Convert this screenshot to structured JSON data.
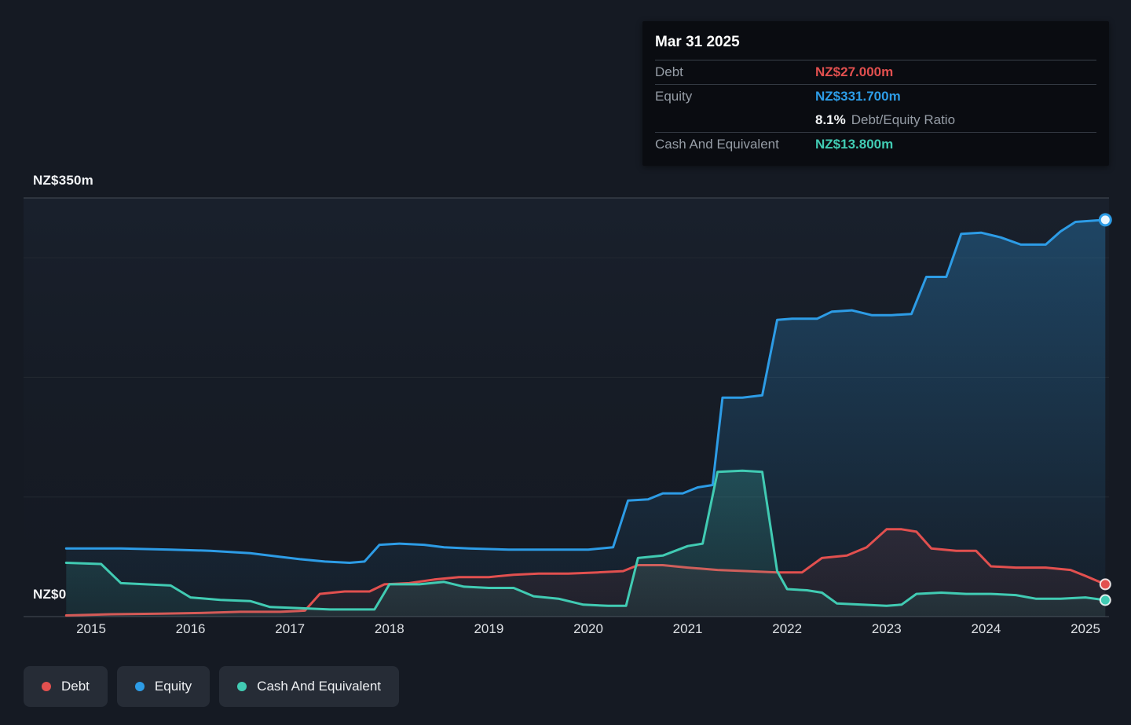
{
  "tooltip": {
    "date": "Mar 31 2025",
    "debt": {
      "label": "Debt",
      "value": "NZ$27.000m",
      "color": "#e2504f"
    },
    "equity": {
      "label": "Equity",
      "value": "NZ$331.700m",
      "color": "#2d9ce6"
    },
    "ratio": {
      "value": "8.1%",
      "label": "Debt/Equity Ratio"
    },
    "cash": {
      "label": "Cash And Equivalent",
      "value": "NZ$13.800m",
      "color": "#41cbb3"
    }
  },
  "legend": {
    "items": [
      {
        "label": "Debt",
        "color": "#e2504f"
      },
      {
        "label": "Equity",
        "color": "#2d9ce6"
      },
      {
        "label": "Cash And Equivalent",
        "color": "#41cbb3"
      }
    ]
  },
  "chart_data": {
    "type": "area",
    "subtype": "step-area time series",
    "x_unit": "year",
    "x_range": [
      2014.75,
      2025.25
    ],
    "y_range": [
      0,
      350
    ],
    "y_unit": "NZ$ millions",
    "grid": true,
    "legend_position": "bottom-left",
    "y_axis": {
      "top_label": "NZ$350m",
      "bottom_label": "NZ$0",
      "gridline_values": [
        350,
        300,
        200,
        100,
        0
      ]
    },
    "x_tick_labels": [
      "2015",
      "2016",
      "2017",
      "2018",
      "2019",
      "2020",
      "2021",
      "2022",
      "2023",
      "2024",
      "2025"
    ],
    "series": [
      {
        "name": "Equity",
        "color": "#2d9ce6",
        "points": [
          [
            2014.75,
            57
          ],
          [
            2015.3,
            57
          ],
          [
            2015.8,
            56
          ],
          [
            2016.2,
            55
          ],
          [
            2016.6,
            53
          ],
          [
            2016.9,
            50
          ],
          [
            2017.1,
            48
          ],
          [
            2017.35,
            46
          ],
          [
            2017.6,
            45
          ],
          [
            2017.75,
            46
          ],
          [
            2017.9,
            60
          ],
          [
            2018.1,
            61
          ],
          [
            2018.35,
            60
          ],
          [
            2018.55,
            58
          ],
          [
            2018.8,
            57
          ],
          [
            2019.2,
            56
          ],
          [
            2019.6,
            56
          ],
          [
            2020.0,
            56
          ],
          [
            2020.25,
            58
          ],
          [
            2020.4,
            97
          ],
          [
            2020.6,
            98
          ],
          [
            2020.75,
            103
          ],
          [
            2020.95,
            103
          ],
          [
            2021.1,
            108
          ],
          [
            2021.25,
            110
          ],
          [
            2021.35,
            183
          ],
          [
            2021.55,
            183
          ],
          [
            2021.75,
            185
          ],
          [
            2021.9,
            248
          ],
          [
            2022.05,
            249
          ],
          [
            2022.3,
            249
          ],
          [
            2022.45,
            255
          ],
          [
            2022.65,
            256
          ],
          [
            2022.85,
            252
          ],
          [
            2023.05,
            252
          ],
          [
            2023.25,
            253
          ],
          [
            2023.4,
            284
          ],
          [
            2023.6,
            284
          ],
          [
            2023.75,
            320
          ],
          [
            2023.95,
            321
          ],
          [
            2024.15,
            317
          ],
          [
            2024.35,
            311
          ],
          [
            2024.6,
            311
          ],
          [
            2024.75,
            322
          ],
          [
            2024.9,
            330
          ],
          [
            2025.2,
            331.7
          ]
        ]
      },
      {
        "name": "Debt",
        "color": "#e2504f",
        "points": [
          [
            2014.75,
            1
          ],
          [
            2015.2,
            2
          ],
          [
            2015.7,
            2.5
          ],
          [
            2016.1,
            3
          ],
          [
            2016.5,
            4
          ],
          [
            2016.9,
            4
          ],
          [
            2017.15,
            5
          ],
          [
            2017.3,
            19
          ],
          [
            2017.55,
            21
          ],
          [
            2017.8,
            21
          ],
          [
            2017.95,
            27
          ],
          [
            2018.2,
            28
          ],
          [
            2018.45,
            31
          ],
          [
            2018.7,
            33
          ],
          [
            2019.0,
            33
          ],
          [
            2019.25,
            35
          ],
          [
            2019.5,
            36
          ],
          [
            2019.8,
            36
          ],
          [
            2020.1,
            37
          ],
          [
            2020.35,
            38
          ],
          [
            2020.5,
            43
          ],
          [
            2020.75,
            43
          ],
          [
            2021.0,
            41
          ],
          [
            2021.3,
            39
          ],
          [
            2021.6,
            38
          ],
          [
            2021.9,
            37
          ],
          [
            2022.15,
            37
          ],
          [
            2022.35,
            49
          ],
          [
            2022.6,
            51
          ],
          [
            2022.8,
            58
          ],
          [
            2023.0,
            73
          ],
          [
            2023.15,
            73
          ],
          [
            2023.3,
            71
          ],
          [
            2023.45,
            57
          ],
          [
            2023.7,
            55
          ],
          [
            2023.9,
            55
          ],
          [
            2024.05,
            42
          ],
          [
            2024.3,
            41
          ],
          [
            2024.6,
            41
          ],
          [
            2024.85,
            39
          ],
          [
            2025.0,
            34
          ],
          [
            2025.2,
            27
          ]
        ]
      },
      {
        "name": "Cash And Equivalent",
        "color": "#41cbb3",
        "points": [
          [
            2014.75,
            45
          ],
          [
            2015.1,
            44
          ],
          [
            2015.3,
            28
          ],
          [
            2015.55,
            27
          ],
          [
            2015.8,
            26
          ],
          [
            2016.0,
            16
          ],
          [
            2016.3,
            14
          ],
          [
            2016.6,
            13
          ],
          [
            2016.8,
            8
          ],
          [
            2017.1,
            7
          ],
          [
            2017.4,
            6
          ],
          [
            2017.7,
            6
          ],
          [
            2017.85,
            6
          ],
          [
            2018.0,
            27
          ],
          [
            2018.3,
            27
          ],
          [
            2018.55,
            29
          ],
          [
            2018.75,
            25
          ],
          [
            2019.0,
            24
          ],
          [
            2019.25,
            24
          ],
          [
            2019.45,
            17
          ],
          [
            2019.7,
            15
          ],
          [
            2019.95,
            10
          ],
          [
            2020.2,
            9
          ],
          [
            2020.38,
            9
          ],
          [
            2020.5,
            49
          ],
          [
            2020.75,
            51
          ],
          [
            2021.0,
            59
          ],
          [
            2021.15,
            61
          ],
          [
            2021.3,
            121
          ],
          [
            2021.55,
            122
          ],
          [
            2021.75,
            121
          ],
          [
            2021.9,
            38
          ],
          [
            2022.0,
            23
          ],
          [
            2022.2,
            22
          ],
          [
            2022.35,
            20
          ],
          [
            2022.5,
            11
          ],
          [
            2022.75,
            10
          ],
          [
            2023.0,
            9
          ],
          [
            2023.15,
            10
          ],
          [
            2023.3,
            19
          ],
          [
            2023.55,
            20
          ],
          [
            2023.8,
            19
          ],
          [
            2024.05,
            19
          ],
          [
            2024.3,
            18
          ],
          [
            2024.5,
            15
          ],
          [
            2024.75,
            15
          ],
          [
            2025.0,
            16
          ],
          [
            2025.2,
            13.8
          ]
        ]
      }
    ]
  }
}
